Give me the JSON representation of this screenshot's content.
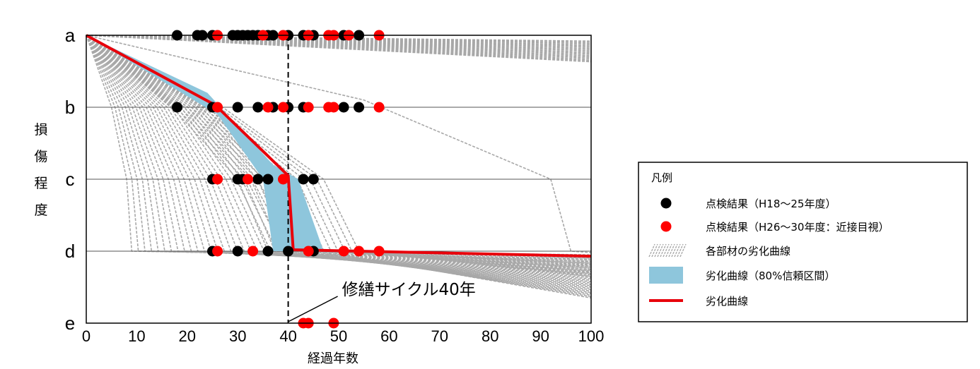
{
  "chart_data": {
    "type": "scatter",
    "title": "",
    "xlabel": "経過年数",
    "ylabel": "損傷程度",
    "xlim": [
      0,
      100
    ],
    "xticks": [
      0,
      10,
      20,
      30,
      40,
      50,
      60,
      70,
      80,
      90,
      100
    ],
    "grades": [
      "a",
      "b",
      "c",
      "d",
      "e"
    ],
    "annotation": {
      "text": "修繕サイクル40年",
      "x": 40
    },
    "colors": {
      "black_points": "#000000",
      "red_points": "#ff0000",
      "mean_curve": "#e8000b",
      "ci_band": "#8ec6dc",
      "member_curves": "#a8a8a8"
    },
    "series": [
      {
        "name": "点検結果（H18～25年度）",
        "color": "#000000",
        "points": [
          {
            "x": 18,
            "grade": "a"
          },
          {
            "x": 22,
            "grade": "a"
          },
          {
            "x": 23,
            "grade": "a"
          },
          {
            "x": 25,
            "grade": "a"
          },
          {
            "x": 29,
            "grade": "a"
          },
          {
            "x": 30,
            "grade": "a"
          },
          {
            "x": 31,
            "grade": "a"
          },
          {
            "x": 32,
            "grade": "a"
          },
          {
            "x": 33,
            "grade": "a"
          },
          {
            "x": 34,
            "grade": "a"
          },
          {
            "x": 36,
            "grade": "a"
          },
          {
            "x": 37,
            "grade": "a"
          },
          {
            "x": 40,
            "grade": "a"
          },
          {
            "x": 43,
            "grade": "a"
          },
          {
            "x": 45,
            "grade": "a"
          },
          {
            "x": 51,
            "grade": "a"
          },
          {
            "x": 54,
            "grade": "a"
          },
          {
            "x": 18,
            "grade": "b"
          },
          {
            "x": 25,
            "grade": "b"
          },
          {
            "x": 30,
            "grade": "b"
          },
          {
            "x": 34,
            "grade": "b"
          },
          {
            "x": 37,
            "grade": "b"
          },
          {
            "x": 40,
            "grade": "b"
          },
          {
            "x": 43,
            "grade": "b"
          },
          {
            "x": 51,
            "grade": "b"
          },
          {
            "x": 54,
            "grade": "b"
          },
          {
            "x": 25,
            "grade": "c"
          },
          {
            "x": 30,
            "grade": "c"
          },
          {
            "x": 31,
            "grade": "c"
          },
          {
            "x": 34,
            "grade": "c"
          },
          {
            "x": 36,
            "grade": "c"
          },
          {
            "x": 43,
            "grade": "c"
          },
          {
            "x": 45,
            "grade": "c"
          },
          {
            "x": 25,
            "grade": "d"
          },
          {
            "x": 30,
            "grade": "d"
          },
          {
            "x": 36,
            "grade": "d"
          },
          {
            "x": 40,
            "grade": "d"
          },
          {
            "x": 45,
            "grade": "d"
          }
        ]
      },
      {
        "name": "点検結果（H26～30年度：近接目視）",
        "color": "#ff0000",
        "points": [
          {
            "x": 26,
            "grade": "a"
          },
          {
            "x": 35,
            "grade": "a"
          },
          {
            "x": 39,
            "grade": "a"
          },
          {
            "x": 44,
            "grade": "a"
          },
          {
            "x": 48,
            "grade": "a"
          },
          {
            "x": 49,
            "grade": "a"
          },
          {
            "x": 52,
            "grade": "a"
          },
          {
            "x": 58,
            "grade": "a"
          },
          {
            "x": 26,
            "grade": "b"
          },
          {
            "x": 36,
            "grade": "b"
          },
          {
            "x": 39,
            "grade": "b"
          },
          {
            "x": 44,
            "grade": "b"
          },
          {
            "x": 48,
            "grade": "b"
          },
          {
            "x": 49,
            "grade": "b"
          },
          {
            "x": 58,
            "grade": "b"
          },
          {
            "x": 26,
            "grade": "c"
          },
          {
            "x": 32,
            "grade": "c"
          },
          {
            "x": 39,
            "grade": "c"
          },
          {
            "x": 26,
            "grade": "d"
          },
          {
            "x": 33,
            "grade": "d"
          },
          {
            "x": 44,
            "grade": "d"
          },
          {
            "x": 51,
            "grade": "d"
          },
          {
            "x": 54,
            "grade": "d"
          },
          {
            "x": 58,
            "grade": "d"
          },
          {
            "x": 43,
            "grade": "e"
          },
          {
            "x": 44,
            "grade": "e"
          },
          {
            "x": 49,
            "grade": "e"
          }
        ]
      },
      {
        "name": "劣化曲線",
        "type": "line",
        "color": "#e8000b",
        "curve": [
          {
            "x": 0,
            "grade_index": 0
          },
          {
            "x": 25,
            "grade_index": 0.95
          },
          {
            "x": 26,
            "grade_index": 1.0
          },
          {
            "x": 40,
            "grade_index": 1.95
          },
          {
            "x": 41,
            "grade_index": 2.98
          },
          {
            "x": 100,
            "grade_index": 3.07
          }
        ]
      },
      {
        "name": "劣化曲線（80%信頼区間）",
        "type": "band",
        "color": "#8ec6dc",
        "upper": [
          {
            "x": 0,
            "grade_index": 0
          },
          {
            "x": 24,
            "grade_index": 0.8
          },
          {
            "x": 37,
            "grade_index": 1.8
          },
          {
            "x": 42,
            "grade_index": 2.0
          },
          {
            "x": 47,
            "grade_index": 3.0
          }
        ],
        "lower": [
          {
            "x": 0,
            "grade_index": 0
          },
          {
            "x": 26,
            "grade_index": 1.1
          },
          {
            "x": 35,
            "grade_index": 2.0
          },
          {
            "x": 37,
            "grade_index": 3.0
          }
        ]
      },
      {
        "name": "各部材の劣化曲線",
        "type": "member_curves",
        "color": "#a8a8a8"
      }
    ]
  },
  "legend": {
    "title": "凡例",
    "items": [
      {
        "key": "black_points",
        "label": "点検結果（H18～25年度）"
      },
      {
        "key": "red_points",
        "label": "点検結果（H26～30年度：近接目視）"
      },
      {
        "key": "member_curves",
        "label": "各部材の劣化曲線"
      },
      {
        "key": "ci_band",
        "label": "劣化曲線（80%信頼区間）"
      },
      {
        "key": "mean_curve",
        "label": "劣化曲線"
      }
    ]
  }
}
